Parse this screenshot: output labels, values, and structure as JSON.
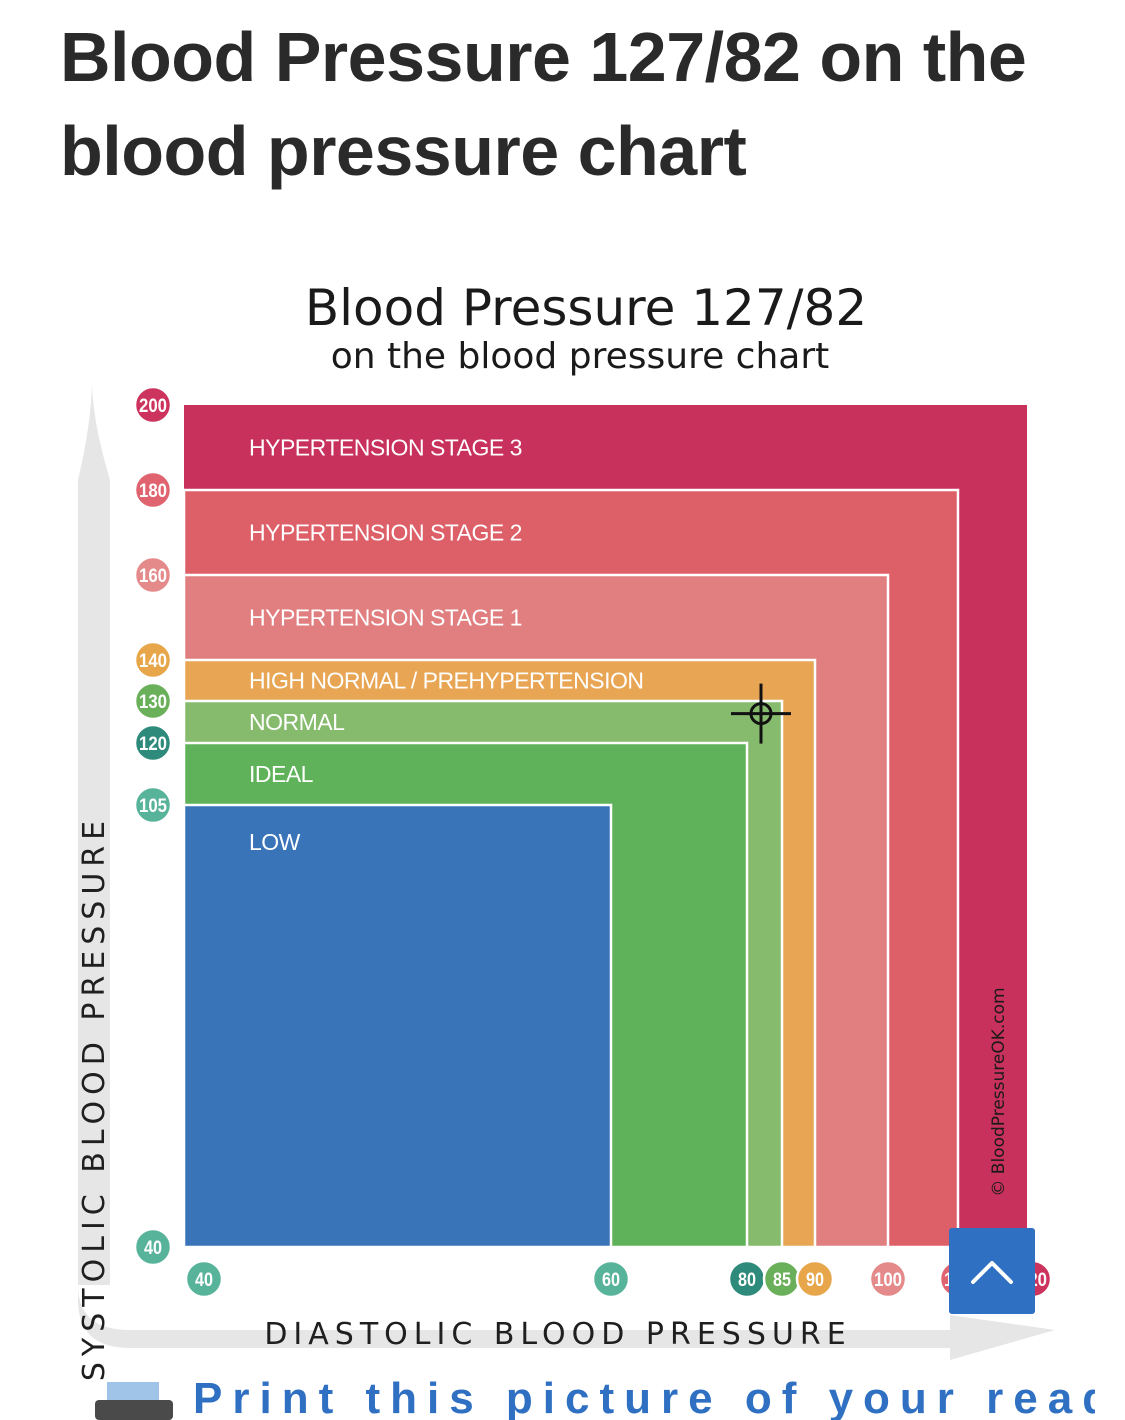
{
  "page": {
    "title": "Blood Pressure 127/82 on the blood pressure chart",
    "print_link": "Print this picture of your reading",
    "scroll_top_icon": "chevron-up-icon",
    "print_icon": "printer-icon"
  },
  "chart_data": {
    "type": "area",
    "title": "Blood Pressure 127/82",
    "subtitle": "on the blood pressure chart",
    "xlabel": "DIASTOLIC BLOOD PRESSURE",
    "ylabel": "SYSTOLIC BLOOD PRESSURE",
    "credit": "© BloodPressureOK.com",
    "xlim": [
      40,
      120
    ],
    "ylim": [
      40,
      200
    ],
    "x_ticks": [
      {
        "value": 40,
        "label": "40",
        "color": "#58b39b"
      },
      {
        "value": 60,
        "label": "60",
        "color": "#58b39b"
      },
      {
        "value": 80,
        "label": "80",
        "color": "#2e8a7a"
      },
      {
        "value": 85,
        "label": "85",
        "color": "#6aaf5a"
      },
      {
        "value": 90,
        "label": "90",
        "color": "#e8a64a"
      },
      {
        "value": 100,
        "label": "100",
        "color": "#e58a8a"
      },
      {
        "value": 110,
        "label": "110",
        "color": "#e06470"
      },
      {
        "value": 120,
        "label": "120",
        "color": "#cc335d"
      }
    ],
    "y_ticks": [
      {
        "value": 200,
        "label": "200",
        "color": "#cc335d"
      },
      {
        "value": 180,
        "label": "180",
        "color": "#e06470"
      },
      {
        "value": 160,
        "label": "160",
        "color": "#e58a8a"
      },
      {
        "value": 140,
        "label": "140",
        "color": "#e8a64a"
      },
      {
        "value": 130,
        "label": "130",
        "color": "#6aaf5a"
      },
      {
        "value": 120,
        "label": "120",
        "color": "#2e8a7a"
      },
      {
        "value": 105,
        "label": "105",
        "color": "#58b39b"
      },
      {
        "value": 40,
        "label": "40",
        "color": "#58b39b"
      }
    ],
    "zones": [
      {
        "name": "HYPERTENSION STAGE 3",
        "systolic_max": 200,
        "diastolic_max": 120,
        "color": "#c8315c"
      },
      {
        "name": "HYPERTENSION STAGE 2",
        "systolic_max": 180,
        "diastolic_max": 110,
        "color": "#dd6068"
      },
      {
        "name": "HYPERTENSION STAGE 1",
        "systolic_max": 160,
        "diastolic_max": 100,
        "color": "#e17f80"
      },
      {
        "name": "HIGH NORMAL / PREHYPERTENSION",
        "systolic_max": 140,
        "diastolic_max": 90,
        "color": "#e8a553"
      },
      {
        "name": "NORMAL",
        "systolic_max": 130,
        "diastolic_max": 85,
        "color": "#86bb6e"
      },
      {
        "name": "IDEAL",
        "systolic_max": 120,
        "diastolic_max": 80,
        "color": "#5fb259"
      },
      {
        "name": "LOW",
        "systolic_max": 105,
        "diastolic_max": 60,
        "color": "#3a74b8"
      }
    ],
    "reading": {
      "systolic": 127,
      "diastolic": 82
    },
    "axis_color": "#e6e6e6",
    "grid": false
  }
}
